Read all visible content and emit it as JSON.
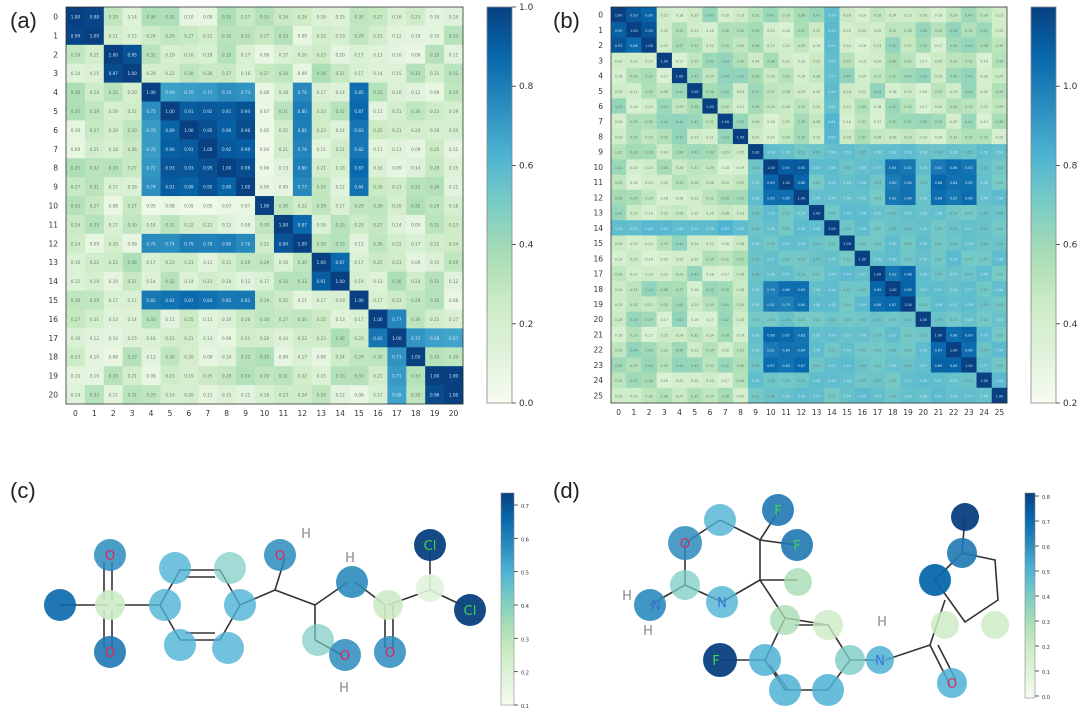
{
  "panels": {
    "a": {
      "label": "(a)"
    },
    "b": {
      "label": "(b)"
    },
    "c": {
      "label": "(c)"
    },
    "d": {
      "label": "(d)"
    }
  },
  "colormap": [
    "#f7fcf0",
    "#e0f3db",
    "#ccebc5",
    "#a8ddb5",
    "#7bccc4",
    "#4eb3d3",
    "#2b8cbe",
    "#0868ac",
    "#084081"
  ],
  "chart_data": [
    {
      "type": "heatmap",
      "panel": "a",
      "n": 21,
      "tick_labels": [
        "0",
        "1",
        "2",
        "3",
        "4",
        "5",
        "6",
        "7",
        "8",
        "9",
        "10",
        "11",
        "12",
        "13",
        "14",
        "15",
        "16",
        "17",
        "18",
        "19",
        "20"
      ],
      "colorbar": {
        "min": 0.0,
        "max": 1.0,
        "ticks": [
          "0.0",
          "0.2",
          "0.4",
          "0.6",
          "0.8",
          "1.0"
        ]
      },
      "blocks": [
        {
          "rows": [
            0,
            1
          ],
          "cols": [
            0,
            1
          ],
          "value": 0.95
        },
        {
          "rows": [
            2,
            3
          ],
          "cols": [
            2,
            3
          ],
          "value": 0.97
        },
        {
          "rows": [
            4,
            9
          ],
          "cols": [
            4,
            9
          ],
          "value": 0.72
        },
        {
          "rows": [
            5,
            9
          ],
          "cols": [
            5,
            9
          ],
          "value": 0.93
        },
        {
          "rows": [
            4,
            9
          ],
          "cols": [
            15,
            15
          ],
          "value": 0.85
        },
        {
          "rows": [
            15,
            15
          ],
          "cols": [
            4,
            9
          ],
          "value": 0.85
        },
        {
          "rows": [
            4,
            9
          ],
          "cols": [
            12,
            12
          ],
          "value": 0.8
        },
        {
          "rows": [
            12,
            12
          ],
          "cols": [
            4,
            9
          ],
          "value": 0.78
        },
        {
          "rows": [
            11,
            12
          ],
          "cols": [
            11,
            12
          ],
          "value": 0.9
        },
        {
          "rows": [
            13,
            14
          ],
          "cols": [
            13,
            14
          ],
          "value": 0.9
        },
        {
          "rows": [
            16,
            17
          ],
          "cols": [
            16,
            17
          ],
          "value": 0.8
        },
        {
          "rows": [
            19,
            20
          ],
          "cols": [
            19,
            20
          ],
          "value": 0.97
        },
        {
          "rows": [
            18,
            20
          ],
          "cols": [
            17,
            17
          ],
          "value": 0.7
        },
        {
          "rows": [
            17,
            17
          ],
          "cols": [
            18,
            20
          ],
          "value": 0.7
        },
        {
          "rows": [
            10,
            10
          ],
          "cols": [
            4,
            9
          ],
          "value": 0.05
        },
        {
          "rows": [
            4,
            9
          ],
          "cols": [
            10,
            10
          ],
          "value": 0.05
        }
      ],
      "background": 0.22
    },
    {
      "type": "heatmap",
      "panel": "b",
      "n": 26,
      "tick_labels": [
        "0",
        "1",
        "2",
        "3",
        "4",
        "5",
        "6",
        "7",
        "8",
        "9",
        "10",
        "11",
        "12",
        "13",
        "14",
        "15",
        "16",
        "17",
        "18",
        "19",
        "20",
        "21",
        "22",
        "23",
        "24",
        "25"
      ],
      "colorbar": {
        "min": 0.0,
        "max": 1.0,
        "ticks": [
          "0.2",
          "0.4",
          "0.6",
          "0.8",
          "1.0"
        ]
      },
      "blocks": [
        {
          "rows": [
            0,
            2
          ],
          "cols": [
            0,
            2
          ],
          "value": 0.9
        },
        {
          "rows": [
            9,
            25
          ],
          "cols": [
            9,
            25
          ],
          "value": 0.55
        },
        {
          "rows": [
            10,
            12
          ],
          "cols": [
            10,
            12
          ],
          "value": 0.88
        },
        {
          "rows": [
            17,
            19
          ],
          "cols": [
            17,
            19
          ],
          "value": 0.85
        },
        {
          "rows": [
            21,
            23
          ],
          "cols": [
            21,
            23
          ],
          "value": 0.88
        },
        {
          "rows": [
            10,
            12
          ],
          "cols": [
            21,
            23
          ],
          "value": 0.85
        },
        {
          "rows": [
            21,
            23
          ],
          "cols": [
            10,
            12
          ],
          "value": 0.85
        },
        {
          "rows": [
            18,
            19
          ],
          "cols": [
            10,
            12
          ],
          "value": 0.82
        },
        {
          "rows": [
            10,
            12
          ],
          "cols": [
            18,
            19
          ],
          "value": 0.82
        },
        {
          "rows": [
            0,
            8
          ],
          "cols": [
            14,
            14
          ],
          "value": 0.6
        },
        {
          "rows": [
            14,
            14
          ],
          "cols": [
            0,
            8
          ],
          "value": 0.6
        }
      ],
      "background": 0.3
    },
    {
      "type": "heatmap",
      "panel": "c",
      "colorbar": {
        "ticks": [
          "0.1",
          "0.2",
          "0.3",
          "0.4",
          "0.5",
          "0.6",
          "0.7"
        ]
      },
      "atom_labels": [
        "O",
        "O",
        "O",
        "H",
        "H",
        "O",
        "H",
        "O",
        "Cl",
        "Cl"
      ]
    },
    {
      "type": "heatmap",
      "panel": "d",
      "colorbar": {
        "ticks": [
          "0.0",
          "0.1",
          "0.2",
          "0.3",
          "0.4",
          "0.5",
          "0.6",
          "0.7",
          "0.8"
        ]
      },
      "atom_labels": [
        "O",
        "N",
        "F",
        "F",
        "N",
        "H",
        "H",
        "F",
        "N",
        "H",
        "O"
      ]
    }
  ]
}
